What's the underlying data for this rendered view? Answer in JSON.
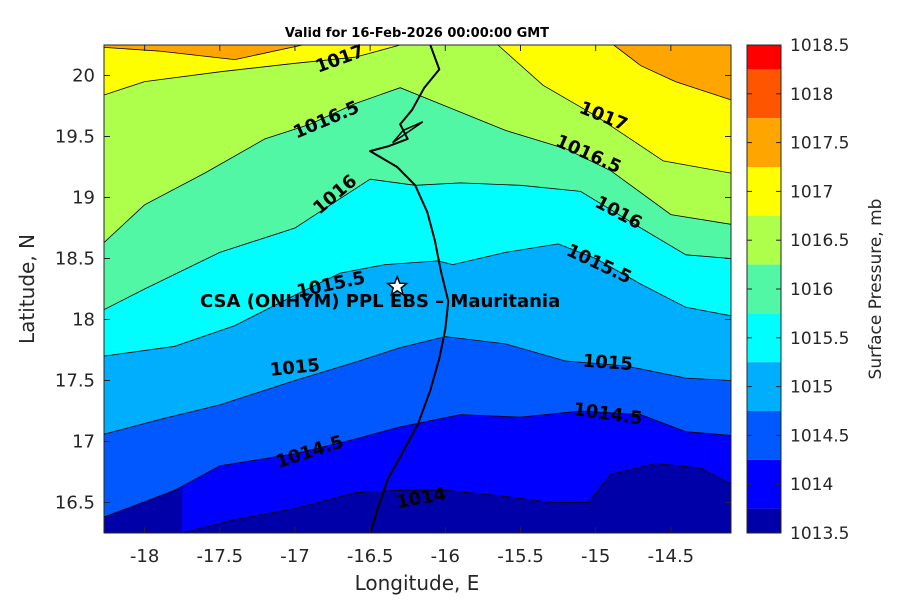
{
  "title": "Valid for 16-Feb-2026 00:00:00 GMT",
  "xlabel": "Longitude, E",
  "ylabel": "Latitude, N",
  "colorbar_label": "Surface Pressure, mb",
  "station_label": "CSA (ONHYM) PPL EBS  – Mauritania",
  "station": {
    "lon": -16.32,
    "lat": 18.27,
    "marker": "star-icon"
  },
  "x_ticks": [
    "-18",
    "-17.5",
    "-17",
    "-16.5",
    "-16",
    "-15.5",
    "-15",
    "-14.5"
  ],
  "y_ticks": [
    "20",
    "19.5",
    "19",
    "18.5",
    "18",
    "17.5",
    "17",
    "16.5"
  ],
  "colorbar_ticks": [
    "1018.5",
    "1018",
    "1017.5",
    "1017",
    "1016.5",
    "1016",
    "1015.5",
    "1015",
    "1014.5",
    "1014",
    "1013.5"
  ],
  "colorbar_colors": [
    "#fe0000",
    "#fe5600",
    "#fea500",
    "#fefe00",
    "#aefe4c",
    "#52f7a6",
    "#00fefe",
    "#00aefe",
    "#0058fe",
    "#0000fe",
    "#0000a8"
  ],
  "contour_labels": [
    {
      "text": "1017",
      "lon": -16.7,
      "lat": 20.13,
      "angle": -20
    },
    {
      "text": "1017",
      "lon": -14.95,
      "lat": 19.66,
      "angle": 22
    },
    {
      "text": "1016.5",
      "lon": -16.79,
      "lat": 19.63,
      "angle": -23
    },
    {
      "text": "1016.5",
      "lon": -15.05,
      "lat": 19.35,
      "angle": 24
    },
    {
      "text": "1016",
      "lon": -16.73,
      "lat": 19.02,
      "angle": -40
    },
    {
      "text": "1016",
      "lon": -14.85,
      "lat": 18.87,
      "angle": 28
    },
    {
      "text": "1015.5",
      "lon": -16.76,
      "lat": 18.28,
      "angle": -12
    },
    {
      "text": "1015.5",
      "lon": -14.98,
      "lat": 18.45,
      "angle": 25
    },
    {
      "text": "1015",
      "lon": -17.0,
      "lat": 17.6,
      "angle": -6
    },
    {
      "text": "1015",
      "lon": -14.92,
      "lat": 17.64,
      "angle": 4
    },
    {
      "text": "1014.5",
      "lon": -16.9,
      "lat": 16.91,
      "angle": -18
    },
    {
      "text": "1014.5",
      "lon": -14.92,
      "lat": 17.22,
      "angle": 8
    },
    {
      "text": "1014",
      "lon": -16.16,
      "lat": 16.53,
      "angle": -10
    }
  ],
  "chart_data": {
    "type": "contour map",
    "title": "Valid for 16-Feb-2026 00:00:00 GMT",
    "xlabel": "Longitude, E",
    "ylabel": "Latitude, N",
    "xlim": [
      -18.27,
      -14.1
    ],
    "ylim": [
      16.25,
      20.25
    ],
    "variable": "Surface Pressure, mb",
    "levels": [
      1013.5,
      1014,
      1014.5,
      1015,
      1015.5,
      1016,
      1016.5,
      1017,
      1017.5,
      1018,
      1018.5
    ],
    "contours": [
      {
        "level": 1017.5,
        "points": [
          [
            -18.27,
            20.23
          ],
          [
            -17.9,
            20.2
          ],
          [
            -17.4,
            20.13
          ],
          [
            -16.95,
            20.25
          ]
        ]
      },
      {
        "level": 1017.5,
        "points": [
          [
            -14.88,
            20.25
          ],
          [
            -14.7,
            20.08
          ],
          [
            -14.47,
            19.95
          ],
          [
            -14.1,
            19.8
          ]
        ]
      },
      {
        "level": 1017,
        "points": [
          [
            -18.27,
            19.84
          ],
          [
            -18.0,
            19.95
          ],
          [
            -17.5,
            20.03
          ],
          [
            -17.0,
            20.1
          ],
          [
            -16.6,
            20.15
          ],
          [
            -16.3,
            20.25
          ]
        ]
      },
      {
        "level": 1017,
        "points": [
          [
            -15.65,
            20.25
          ],
          [
            -15.35,
            19.92
          ],
          [
            -15.0,
            19.67
          ],
          [
            -14.55,
            19.3
          ],
          [
            -14.1,
            19.2
          ]
        ]
      },
      {
        "level": 1016.5,
        "points": [
          [
            -18.27,
            18.63
          ],
          [
            -18.0,
            18.94
          ],
          [
            -17.6,
            19.2
          ],
          [
            -17.2,
            19.48
          ],
          [
            -16.9,
            19.6
          ],
          [
            -16.6,
            19.77
          ],
          [
            -16.3,
            19.9
          ],
          [
            -16.0,
            19.75
          ],
          [
            -15.6,
            19.55
          ],
          [
            -15.2,
            19.4
          ],
          [
            -14.9,
            19.22
          ],
          [
            -14.5,
            18.86
          ],
          [
            -14.1,
            18.78
          ]
        ]
      },
      {
        "level": 1016,
        "points": [
          [
            -18.27,
            18.08
          ],
          [
            -18.0,
            18.25
          ],
          [
            -17.5,
            18.55
          ],
          [
            -17.0,
            18.75
          ],
          [
            -16.75,
            18.95
          ],
          [
            -16.5,
            19.15
          ],
          [
            -16.2,
            19.1
          ],
          [
            -15.9,
            19.12
          ],
          [
            -15.5,
            19.1
          ],
          [
            -15.1,
            19.05
          ],
          [
            -14.7,
            18.75
          ],
          [
            -14.4,
            18.53
          ],
          [
            -14.1,
            18.5
          ]
        ]
      },
      {
        "level": 1015.5,
        "points": [
          [
            -18.27,
            17.7
          ],
          [
            -17.8,
            17.78
          ],
          [
            -17.4,
            17.95
          ],
          [
            -17.0,
            18.2
          ],
          [
            -16.7,
            18.38
          ],
          [
            -16.4,
            18.45
          ],
          [
            -16.05,
            18.48
          ],
          [
            -15.95,
            18.45
          ],
          [
            -15.6,
            18.55
          ],
          [
            -15.25,
            18.62
          ],
          [
            -15.0,
            18.5
          ],
          [
            -14.7,
            18.29
          ],
          [
            -14.4,
            18.1
          ],
          [
            -14.1,
            18.03
          ]
        ]
      },
      {
        "level": 1015,
        "points": [
          [
            -18.27,
            17.06
          ],
          [
            -17.9,
            17.18
          ],
          [
            -17.5,
            17.3
          ],
          [
            -17.0,
            17.5
          ],
          [
            -16.6,
            17.65
          ],
          [
            -16.3,
            17.77
          ],
          [
            -16.0,
            17.86
          ],
          [
            -15.6,
            17.8
          ],
          [
            -15.2,
            17.66
          ],
          [
            -14.8,
            17.62
          ],
          [
            -14.4,
            17.52
          ],
          [
            -14.1,
            17.5
          ]
        ]
      },
      {
        "level": 1014.5,
        "points": [
          [
            -18.27,
            16.38
          ],
          [
            -17.8,
            16.6
          ],
          [
            -17.5,
            16.8
          ],
          [
            -17.0,
            16.9
          ],
          [
            -16.6,
            17.02
          ],
          [
            -16.3,
            17.12
          ],
          [
            -15.9,
            17.22
          ],
          [
            -15.5,
            17.2
          ],
          [
            -15.1,
            17.25
          ],
          [
            -14.7,
            17.22
          ],
          [
            -14.4,
            17.08
          ],
          [
            -14.1,
            17.05
          ]
        ]
      },
      {
        "level": 1014,
        "points": [
          [
            -17.75,
            16.25
          ],
          [
            -17.4,
            16.36
          ],
          [
            -17.0,
            16.45
          ],
          [
            -16.6,
            16.58
          ],
          [
            -16.3,
            16.6
          ],
          [
            -16.0,
            16.6
          ],
          [
            -15.6,
            16.55
          ],
          [
            -15.3,
            16.5
          ],
          [
            -15.05,
            16.5
          ],
          [
            -14.9,
            16.73
          ],
          [
            -14.6,
            16.82
          ],
          [
            -14.3,
            16.78
          ],
          [
            -14.1,
            16.65
          ]
        ]
      }
    ],
    "station": {
      "name": "CSA (ONHYM) PPL EBS  – Mauritania",
      "lon": -16.32,
      "lat": 18.27
    },
    "coastline": [
      [
        -16.1,
        20.25
      ],
      [
        -16.04,
        20.05
      ],
      [
        -16.14,
        19.9
      ],
      [
        -16.22,
        19.72
      ],
      [
        -16.3,
        19.6
      ],
      [
        -16.25,
        19.48
      ],
      [
        -16.38,
        19.42
      ],
      [
        -16.5,
        19.38
      ],
      [
        -16.32,
        19.25
      ],
      [
        -16.2,
        19.1
      ],
      [
        -16.12,
        18.88
      ],
      [
        -16.07,
        18.65
      ],
      [
        -16.03,
        18.4
      ],
      [
        -15.98,
        18.15
      ],
      [
        -16.0,
        17.92
      ],
      [
        -16.04,
        17.68
      ],
      [
        -16.1,
        17.42
      ],
      [
        -16.18,
        17.15
      ],
      [
        -16.28,
        16.92
      ],
      [
        -16.38,
        16.7
      ],
      [
        -16.45,
        16.45
      ],
      [
        -16.5,
        16.25
      ]
    ]
  }
}
